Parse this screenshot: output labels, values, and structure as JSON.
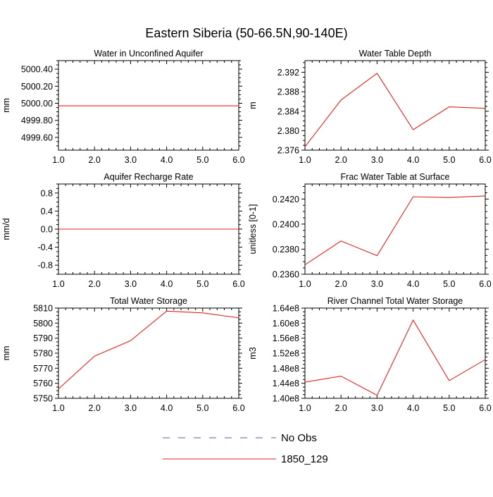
{
  "page": {
    "title": "Eastern Siberia (50-66.5N,90-140E)"
  },
  "legend": {
    "items": [
      {
        "label": "No Obs",
        "color": "#5a5aaa",
        "style": "dashed"
      },
      {
        "label": "1850_129",
        "color": "#e02020",
        "style": "solid"
      }
    ]
  },
  "chart_data": [
    {
      "type": "line",
      "title": "Water in Unconfined Aquifer",
      "ylabel": "mm",
      "x": [
        1,
        2,
        3,
        4,
        5,
        6
      ],
      "xlim": [
        1,
        6
      ],
      "ylim": [
        4999.45,
        5000.5
      ],
      "xticks": [
        1,
        2,
        3,
        4,
        5,
        6
      ],
      "xtick_labels": [
        "1.0",
        "2.0",
        "3.0",
        "4.0",
        "5.0",
        "6.0"
      ],
      "yticks": [
        4999.6,
        4999.8,
        5000.0,
        5000.2,
        5000.4
      ],
      "ytick_labels": [
        "4999.60",
        "4999.80",
        "5000.00",
        "5000.20",
        "5000.40"
      ],
      "series": [
        {
          "color": "#e02020",
          "values": [
            4999.97,
            4999.97,
            4999.97,
            4999.97,
            4999.97,
            4999.97
          ]
        }
      ]
    },
    {
      "type": "line",
      "title": "Water Table Depth",
      "ylabel": "m",
      "x": [
        1,
        2,
        3,
        4,
        5,
        6
      ],
      "xlim": [
        1,
        6
      ],
      "ylim": [
        2.376,
        2.3944
      ],
      "xticks": [
        1,
        2,
        3,
        4,
        5,
        6
      ],
      "xtick_labels": [
        "1.0",
        "2.0",
        "3.0",
        "4.0",
        "5.0",
        "6.0"
      ],
      "yticks": [
        2.376,
        2.38,
        2.384,
        2.388,
        2.392
      ],
      "ytick_labels": [
        "2.376",
        "2.380",
        "2.384",
        "2.388",
        "2.392"
      ],
      "series": [
        {
          "color": "#e02020",
          "values": [
            2.3767,
            2.3863,
            2.3918,
            2.3802,
            2.3849,
            2.3846
          ]
        }
      ]
    },
    {
      "type": "line",
      "title": "Aquifer Recharge Rate",
      "ylabel": "mm/d",
      "x": [
        1,
        2,
        3,
        4,
        5,
        6
      ],
      "xlim": [
        1,
        6
      ],
      "ylim": [
        -1.0,
        1.0
      ],
      "xticks": [
        1,
        2,
        3,
        4,
        5,
        6
      ],
      "xtick_labels": [
        "1.0",
        "2.0",
        "3.0",
        "4.0",
        "5.0",
        "6.0"
      ],
      "yticks": [
        -0.8,
        -0.4,
        0.0,
        0.4,
        0.8
      ],
      "ytick_labels": [
        "-0.8",
        "-0.4",
        "0.0",
        "0.4",
        "0.8"
      ],
      "series": [
        {
          "color": "#e02020",
          "values": [
            0,
            0,
            0,
            0,
            0,
            0
          ]
        }
      ]
    },
    {
      "type": "line",
      "title": "Frac Water Table at Surface",
      "ylabel": "unitless [0-1]",
      "x": [
        1,
        2,
        3,
        4,
        5,
        6
      ],
      "xlim": [
        1,
        6
      ],
      "ylim": [
        0.236,
        0.2432
      ],
      "xticks": [
        1,
        2,
        3,
        4,
        5,
        6
      ],
      "xtick_labels": [
        "1.0",
        "2.0",
        "3.0",
        "4.0",
        "5.0",
        "6.0"
      ],
      "yticks": [
        0.236,
        0.238,
        0.24,
        0.242
      ],
      "ytick_labels": [
        "0.2360",
        "0.2380",
        "0.2400",
        "0.2420"
      ],
      "series": [
        {
          "color": "#e02020",
          "values": [
            0.23675,
            0.23865,
            0.23748,
            0.24218,
            0.24212,
            0.24225
          ]
        }
      ]
    },
    {
      "type": "line",
      "title": "Total Water Storage",
      "ylabel": "mm",
      "x": [
        1,
        2,
        3,
        4,
        5,
        6
      ],
      "xlim": [
        1,
        6
      ],
      "ylim": [
        5750,
        5810
      ],
      "xticks": [
        1,
        2,
        3,
        4,
        5,
        6
      ],
      "xtick_labels": [
        "1.0",
        "2.0",
        "3.0",
        "4.0",
        "5.0",
        "6.0"
      ],
      "yticks": [
        5750,
        5760,
        5770,
        5780,
        5790,
        5800,
        5810
      ],
      "ytick_labels": [
        "5750",
        "5760",
        "5770",
        "5780",
        "5790",
        "5800",
        "5810"
      ],
      "series": [
        {
          "color": "#e02020",
          "values": [
            5756.2,
            5778.0,
            5788.3,
            5808.0,
            5806.8,
            5803.5
          ]
        }
      ]
    },
    {
      "type": "line",
      "title": "River Channel Total Water Storage",
      "ylabel": "m3",
      "x": [
        1,
        2,
        3,
        4,
        5,
        6
      ],
      "xlim": [
        1,
        6
      ],
      "ylim": [
        140000000,
        164000000
      ],
      "xticks": [
        1,
        2,
        3,
        4,
        5,
        6
      ],
      "xtick_labels": [
        "1.0",
        "2.0",
        "3.0",
        "4.0",
        "5.0",
        "6.0"
      ],
      "yticks": [
        140000000,
        144000000,
        148000000,
        152000000,
        156000000,
        160000000,
        164000000
      ],
      "ytick_labels": [
        "1.40e8",
        "1.44e8",
        "1.48e8",
        "1.52e8",
        "1.56e8",
        "1.60e8",
        "1.64e8"
      ],
      "series": [
        {
          "color": "#e02020",
          "values": [
            144300000,
            145900000,
            140800000,
            160800000,
            144700000,
            150300000
          ]
        }
      ]
    }
  ]
}
